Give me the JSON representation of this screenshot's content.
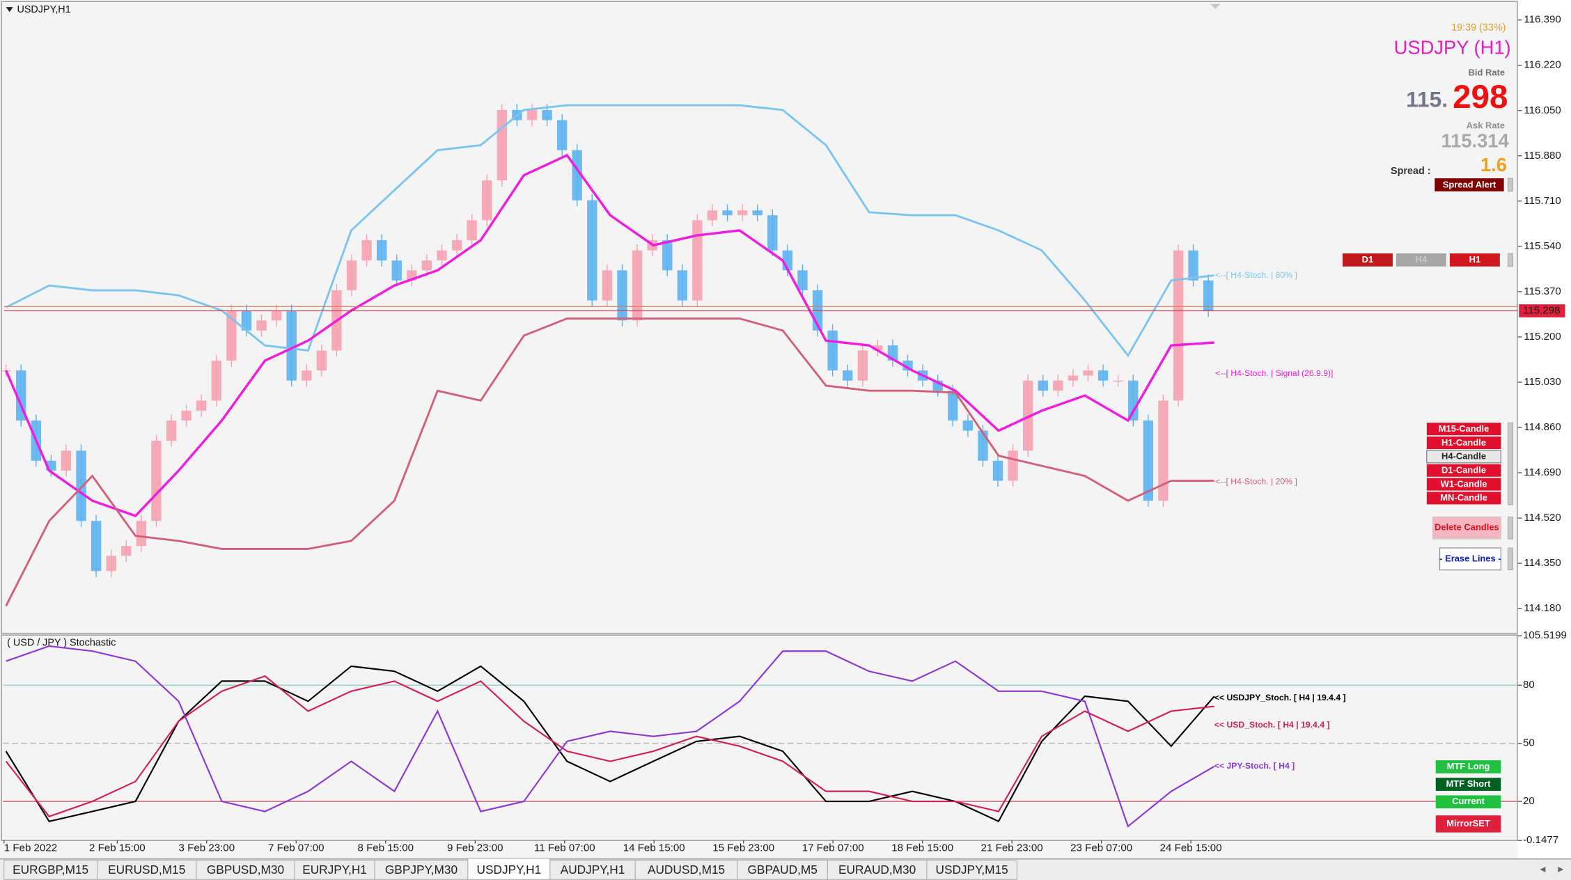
{
  "window": {
    "title": "USDJPY,H1"
  },
  "price_chart": {
    "type": "candlestick",
    "ylim": [
      114.088,
      116.45
    ],
    "yticks": [
      {
        "value": 116.39,
        "label": "116.390"
      },
      {
        "value": 116.22,
        "label": "116.220"
      },
      {
        "value": 116.05,
        "label": "116.050"
      },
      {
        "value": 115.88,
        "label": "115.880"
      },
      {
        "value": 115.71,
        "label": "115.710"
      },
      {
        "value": 115.54,
        "label": "115.540"
      },
      {
        "value": 115.37,
        "label": "115.370"
      },
      {
        "value": 115.2,
        "label": "115.200"
      },
      {
        "value": 115.03,
        "label": "115.030"
      },
      {
        "value": 114.86,
        "label": "114.860"
      },
      {
        "value": 114.69,
        "label": "114.690"
      },
      {
        "value": 114.52,
        "label": "114.520"
      },
      {
        "value": 114.35,
        "label": "114.350"
      },
      {
        "value": 114.18,
        "label": "114.180"
      }
    ],
    "x_labels": [
      "1 Feb 2022",
      "2 Feb 15:00",
      "3 Feb 23:00",
      "7 Feb 07:00",
      "8 Feb 15:00",
      "9 Feb 23:00",
      "11 Feb 07:00",
      "14 Feb 15:00",
      "15 Feb 23:00",
      "17 Feb 07:00",
      "18 Feb 15:00",
      "21 Feb 23:00",
      "23 Feb 07:00",
      "24 Feb 15:00"
    ],
    "close": [
      115.074,
      114.886,
      114.735,
      114.698,
      114.773,
      114.509,
      114.321,
      114.378,
      114.415,
      114.509,
      114.81,
      114.886,
      114.923,
      114.961,
      115.111,
      115.299,
      115.224,
      115.262,
      115.299,
      115.036,
      115.074,
      115.149,
      115.375,
      115.487,
      115.563,
      115.487,
      115.412,
      115.45,
      115.487,
      115.525,
      115.563,
      115.638,
      115.788,
      116.052,
      116.014,
      116.052,
      116.014,
      115.901,
      115.713,
      115.337,
      115.45,
      115.262,
      115.525,
      115.563,
      115.45,
      115.337,
      115.638,
      115.675,
      115.657,
      115.675,
      115.657,
      115.525,
      115.45,
      115.375,
      115.224,
      115.074,
      115.036,
      115.149,
      115.168,
      115.111,
      115.074,
      115.036,
      114.998,
      114.886,
      114.848,
      114.735,
      114.66,
      114.773,
      115.036,
      114.998,
      115.036,
      115.055,
      115.074,
      115.036,
      115.036,
      114.886,
      114.585,
      114.961,
      115.525,
      115.412,
      115.298
    ],
    "up_color": "#f6a2b0",
    "down_color": "#5cb2f0",
    "overlays": [
      {
        "name": "<--[ H4-Stoch. | 80% ]",
        "color": "#7cc4ee",
        "values": [
          115.311,
          115.393,
          115.375,
          115.375,
          115.356,
          115.299,
          115.168,
          115.149,
          115.6,
          115.751,
          115.901,
          115.92,
          116.052,
          116.07,
          116.07,
          116.07,
          116.07,
          116.07,
          116.052,
          115.92,
          115.668,
          115.657,
          115.657,
          115.6,
          115.525,
          115.337,
          115.13,
          115.412,
          115.431
        ]
      },
      {
        "name": "<--[ H4-Stoch. | Signal (26.9.9)]",
        "color": "#ee1ee0",
        "values": [
          115.074,
          114.698,
          114.585,
          114.528,
          114.698,
          114.886,
          115.111,
          115.186,
          115.299,
          115.393,
          115.45,
          115.563,
          115.807,
          115.882,
          115.657,
          115.544,
          115.581,
          115.6,
          115.487,
          115.186,
          115.168,
          115.074,
          114.998,
          114.848,
          114.923,
          114.98,
          114.886,
          115.168,
          115.179
        ]
      },
      {
        "name": "<--[ H4-Stoch. | 20% ]",
        "color": "#d0607a",
        "values": [
          114.19,
          114.509,
          114.678,
          114.453,
          114.434,
          114.404,
          114.404,
          114.404,
          114.434,
          114.585,
          114.998,
          114.961,
          115.205,
          115.269,
          115.269,
          115.269,
          115.269,
          115.269,
          115.224,
          115.017,
          114.998,
          114.998,
          114.991,
          114.754,
          114.716,
          114.678,
          114.585,
          114.66,
          114.66
        ]
      }
    ],
    "bid_price": 115.298,
    "ask_price": 115.314
  },
  "info_panel": {
    "time": "19:39 (33%)",
    "symbol": "USDJPY (H1)",
    "bid_label": "Bid Rate",
    "bid_big": "115.",
    "bid_small": "298",
    "ask_label": "Ask Rate",
    "spread_label": "Spread :",
    "spread": "1.6",
    "spread_alert": "Spread Alert",
    "timeframes": [
      "D1",
      "H4",
      "H1"
    ],
    "candle_buttons": [
      "M15-Candle",
      "H1-Candle",
      "H4-Candle",
      "D1-Candle",
      "W1-Candle",
      "MN-Candle"
    ],
    "delete": "Delete Candles",
    "erase": "- Erase Lines -"
  },
  "stoch_chart": {
    "type": "line",
    "title": "( USD / JPY ) Stochastic",
    "ylim": [
      -0.1477,
      105.5199
    ],
    "yticks": [
      105.5199,
      80,
      50,
      20,
      -0.1477
    ],
    "series": [
      {
        "name": "<< USDJPY_Stoch. [ H4 | 19.4.4 ]",
        "color": "#000000",
        "values": [
          45.9,
          9.7,
          14.8,
          20,
          61.4,
          82.1,
          82.1,
          71.7,
          89.8,
          87.2,
          76.9,
          89.8,
          71.7,
          40.7,
          30.3,
          40.7,
          51.0,
          53.6,
          45.9,
          20,
          20,
          25.2,
          20,
          9.7,
          51.0,
          74.3,
          71.7,
          48.5,
          74.3
        ]
      },
      {
        "name": "<< USD_Stoch. [ H4 | 19.4.4 ]",
        "color": "#d0205a",
        "values": [
          40.7,
          12.2,
          20,
          30.3,
          61.4,
          76.9,
          84.7,
          66.6,
          76.9,
          82.1,
          71.7,
          82.1,
          61.4,
          45.9,
          40.7,
          45.9,
          53.6,
          48.5,
          40.7,
          25.2,
          25.2,
          20,
          20,
          14.8,
          53.6,
          66.6,
          56.2,
          66.6,
          69.1
        ]
      },
      {
        "name": "<< JPY-Stoch. [ H4 ]",
        "color": "#8a3ad0",
        "values": [
          92.4,
          100.2,
          97.6,
          92.4,
          71.7,
          20,
          14.8,
          25.2,
          40.7,
          25.2,
          66.6,
          14.8,
          20,
          51.0,
          56.2,
          53.6,
          56.2,
          71.7,
          97.6,
          97.6,
          87.2,
          82.1,
          92.4,
          76.9,
          76.9,
          71.7,
          7.1,
          25.2,
          38.1
        ]
      }
    ],
    "buttons": [
      "MTF Long",
      "MTF Short",
      "Current",
      "MirrorSET"
    ]
  },
  "tabs": [
    "EURGBP,M15",
    "EURUSD,M15",
    "GBPUSD,M30",
    "EURJPY,H1",
    "GBPJPY,M30",
    "USDJPY,H1",
    "AUDJPY,H1",
    "AUDUSD,M15",
    "GBPAUD,M5",
    "EURAUD,M30",
    "USDJPY,M15"
  ],
  "active_tab": 5
}
